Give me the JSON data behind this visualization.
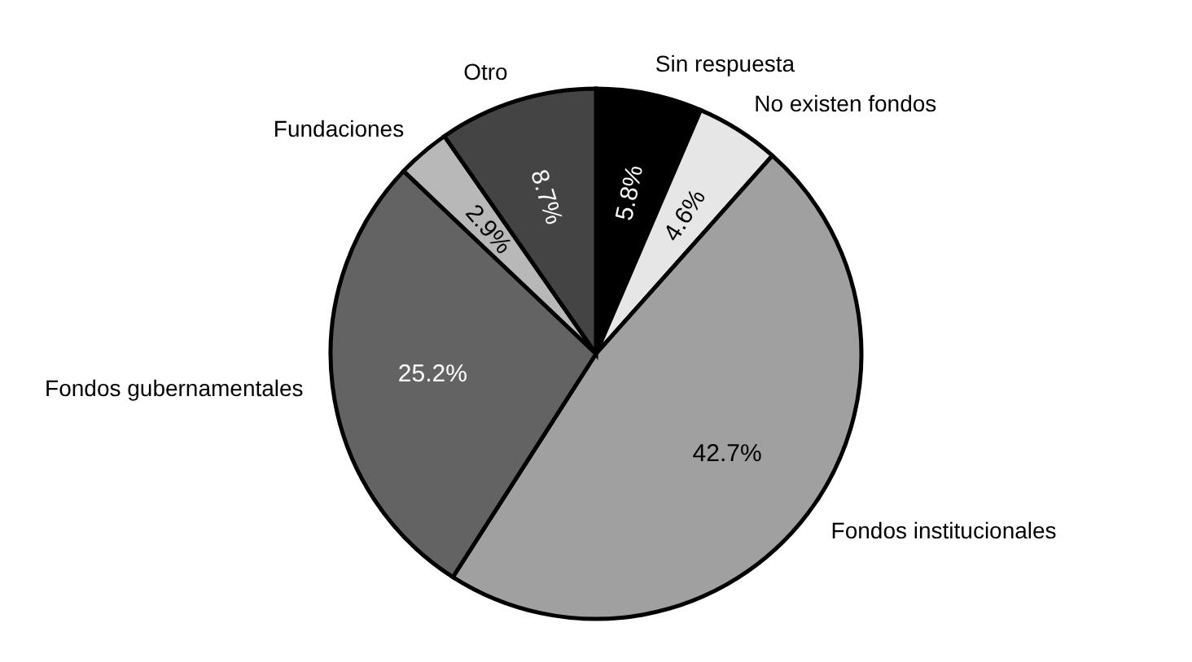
{
  "chart_data": {
    "type": "pie",
    "categories": [
      "Sin respuesta",
      "No existen fondos",
      "Fondos institucionales",
      "Fondos gubernamentales",
      "Fundaciones",
      "Otro"
    ],
    "values": [
      5.8,
      4.6,
      42.7,
      25.2,
      2.9,
      8.7
    ],
    "colors": [
      "#000000",
      "#e6e6e6",
      "#a0a0a0",
      "#636363",
      "#b8b8b8",
      "#444444"
    ],
    "value_labels": [
      "5.8%",
      "4.6%",
      "42.7%",
      "25.2%",
      "2.9%",
      "8.7%"
    ]
  }
}
